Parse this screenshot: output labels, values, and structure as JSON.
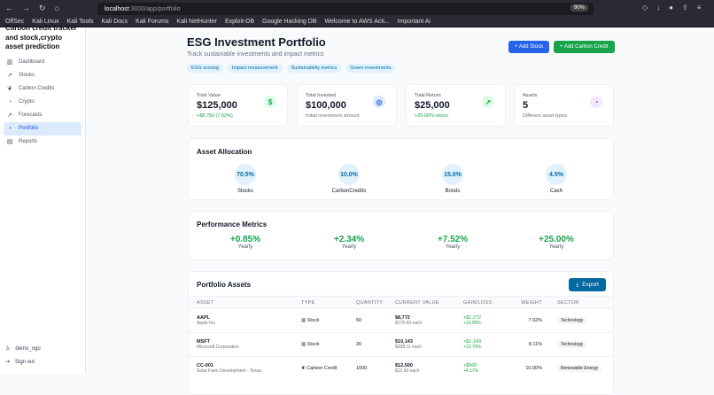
{
  "browser": {
    "url_host": "localhost",
    "url_path": ":3000/app/portfolio",
    "zoom": "90%",
    "bookmarks": [
      "OffSec",
      "Kali Linux",
      "Kali Tools",
      "Kali Docs",
      "Kali Forums",
      "Kali NetHunter",
      "Exploit-DB",
      "Google Hacking DB",
      "Welcome to AWS Acti...",
      "Important Ai"
    ]
  },
  "sidebar": {
    "brand": "Carbon credit tracker and stock,crypto asset prediction",
    "items": [
      {
        "label": "Dashboard",
        "icon": "bar-chart-icon"
      },
      {
        "label": "Stocks",
        "icon": "trending-up-icon"
      },
      {
        "label": "Carbon Credits",
        "icon": "leaf-icon"
      },
      {
        "label": "Crypto",
        "icon": "pie-chart-icon"
      },
      {
        "label": "Forecasts",
        "icon": "trending-up-icon"
      },
      {
        "label": "Portfolio",
        "icon": "pie-chart-icon",
        "active": true
      },
      {
        "label": "Reports",
        "icon": "file-icon"
      }
    ],
    "user": "demo_ngo",
    "signout": "Sign out"
  },
  "header": {
    "title": "ESG Investment Portfolio",
    "subtitle": "Track sustainable investments and impact metrics",
    "tags": [
      "ESG scoring",
      "Impact measurement",
      "Sustainability metrics",
      "Green investments"
    ],
    "add_stock": "+ Add Stock",
    "add_carbon": "+ Add Carbon Credit"
  },
  "stats": [
    {
      "label": "Total Value",
      "value": "$125,000",
      "sub": "+$8,750 (7.52%)",
      "icon": "dollar-icon",
      "color": "#16a34a"
    },
    {
      "label": "Total Invested",
      "value": "$100,000",
      "sub": "Initial investment amount",
      "icon": "target-icon",
      "color": "#2563eb"
    },
    {
      "label": "Total Return",
      "value": "$25,000",
      "sub": "+25.00% return",
      "icon": "trending-up-icon",
      "color": "#16a34a"
    },
    {
      "label": "Assets",
      "value": "5",
      "sub": "Different asset types",
      "icon": "pie-chart-icon",
      "color": "#9333ea"
    }
  ],
  "allocation": {
    "title": "Asset Allocation",
    "items": [
      {
        "pct": "70.5%",
        "name": "Stocks"
      },
      {
        "pct": "10.0%",
        "name": "CarbonCredits"
      },
      {
        "pct": "15.0%",
        "name": "Bonds"
      },
      {
        "pct": "4.5%",
        "name": "Cash"
      }
    ]
  },
  "performance": {
    "title": "Performance Metrics",
    "items": [
      {
        "value": "+0.85%",
        "label": "Yearly"
      },
      {
        "value": "+2.34%",
        "label": "Yearly"
      },
      {
        "value": "+7.52%",
        "label": "Yearly"
      },
      {
        "value": "+25.00%",
        "label": "Yearly"
      }
    ]
  },
  "assets": {
    "title": "Portfolio Assets",
    "export": "Export",
    "columns": [
      "ASSET",
      "TYPE",
      "QUANTITY",
      "CURRENT VALUE",
      "GAIN/LOSS",
      "WEIGHT",
      "SECTOR"
    ],
    "rows": [
      {
        "symbol": "AAPL",
        "name": "Apple Inc.",
        "type": "Stock",
        "qty": "50",
        "value": "$8,772",
        "each": "$175.43 each",
        "gain": "+$1,272",
        "gainpct": "+16.95%",
        "weight": "7.02%",
        "sector": "Technology"
      },
      {
        "symbol": "MSFT",
        "name": "Microsoft Corporation",
        "type": "Stock",
        "qty": "30",
        "value": "$10,143",
        "each": "$338.11 each",
        "gain": "+$1,143",
        "gainpct": "+12.70%",
        "weight": "8.11%",
        "sector": "Technology"
      },
      {
        "symbol": "CC-001",
        "name": "Solar Farm Development - Texas",
        "type": "Carbon Credit",
        "qty": "1000",
        "value": "$12,500",
        "each": "$12.50 each",
        "gain": "+$500",
        "gainpct": "+4.17%",
        "weight": "10.00%",
        "sector": "Renewable Energy"
      }
    ]
  }
}
